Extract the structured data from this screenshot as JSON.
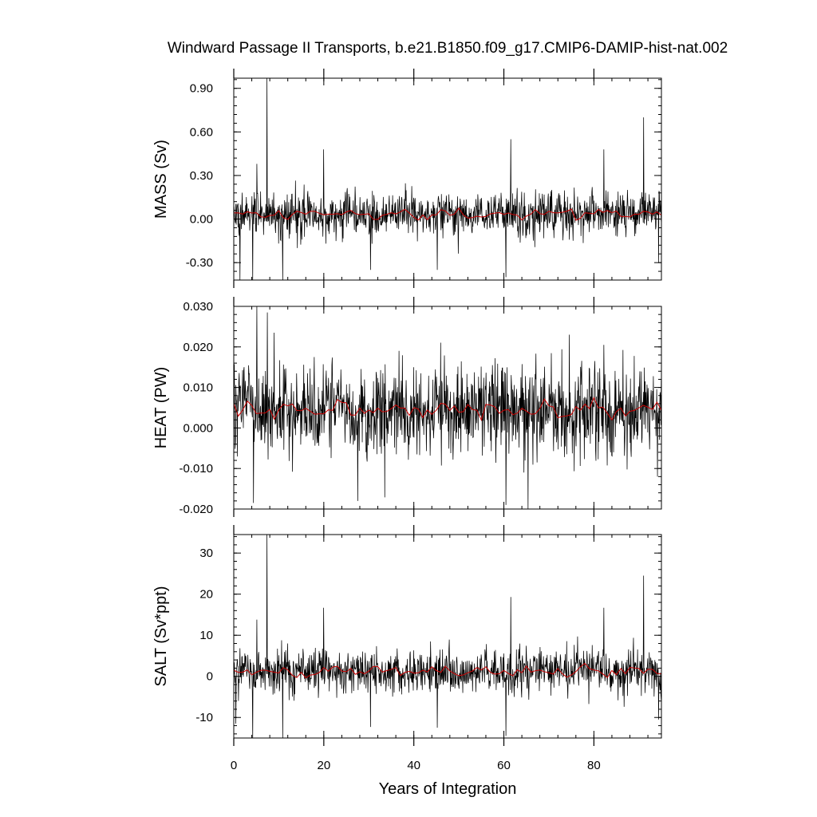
{
  "figure": {
    "title": "Windward Passage II Transports, b.e21.B1850.f09_g17.CMIP6-DAMIP-hist-nat.002",
    "xlabel": "Years of Integration"
  },
  "chart_data": [
    {
      "type": "line",
      "ylabel": "MASS (Sv)",
      "xlim": [
        0,
        95
      ],
      "ylim": [
        -0.42,
        0.97
      ],
      "yticks": [
        -0.3,
        0.0,
        0.3,
        0.6,
        0.9
      ],
      "ytick_labels": [
        "-0.30",
        "0.00",
        "0.30",
        "0.60",
        "0.90"
      ],
      "xticks": [
        0,
        20,
        40,
        60,
        80
      ],
      "xtick_labels": [
        "0",
        "20",
        "40",
        "60",
        "80"
      ],
      "series": [
        {
          "color": "#000000",
          "kind": "monthly",
          "mean": 0.035,
          "std": 0.075,
          "spikes": [
            [
              1.3,
              -0.42
            ],
            [
              4.2,
              -0.42
            ],
            [
              5.1,
              0.38
            ],
            [
              7.3,
              0.97
            ],
            [
              10.8,
              -0.42
            ],
            [
              19.9,
              0.48
            ],
            [
              30.3,
              -0.35
            ],
            [
              45.2,
              -0.35
            ],
            [
              60.4,
              -0.4
            ],
            [
              61.5,
              0.55
            ],
            [
              82.2,
              0.48
            ],
            [
              91.0,
              0.7
            ],
            [
              94.3,
              -0.3
            ]
          ]
        },
        {
          "color": "#cc0000",
          "kind": "annual_mean",
          "mean": 0.035,
          "std": 0.025
        }
      ]
    },
    {
      "type": "line",
      "ylabel": "HEAT (PW)",
      "xlim": [
        0,
        95
      ],
      "ylim": [
        -0.02,
        0.03
      ],
      "yticks": [
        -0.02,
        -0.01,
        0.0,
        0.01,
        0.02,
        0.03
      ],
      "ytick_labels": [
        "-0.020",
        "-0.010",
        "0.000",
        "0.010",
        "0.020",
        "0.030"
      ],
      "xticks": [
        0,
        20,
        40,
        60,
        80
      ],
      "xtick_labels": [
        "0",
        "20",
        "40",
        "60",
        "80"
      ],
      "series": [
        {
          "color": "#000000",
          "kind": "monthly",
          "mean": 0.0045,
          "std": 0.0055,
          "spikes": [
            [
              4.3,
              -0.0185
            ],
            [
              5.1,
              0.03
            ],
            [
              7.4,
              0.0285
            ],
            [
              8.9,
              0.0235
            ],
            [
              27.5,
              -0.018
            ],
            [
              60.4,
              -0.019
            ],
            [
              65.3,
              -0.02
            ],
            [
              74.5,
              0.023
            ],
            [
              82.2,
              0.0205
            ],
            [
              94.1,
              -0.012
            ]
          ]
        },
        {
          "color": "#cc0000",
          "kind": "annual_mean",
          "mean": 0.0045,
          "std": 0.0016
        }
      ]
    },
    {
      "type": "line",
      "ylabel": "SALT (Sv*ppt)",
      "xlim": [
        0,
        95
      ],
      "ylim": [
        -15,
        34.5
      ],
      "yticks": [
        -10,
        0,
        10,
        20,
        30
      ],
      "ytick_labels": [
        "-10",
        "0",
        "10",
        "20",
        "30"
      ],
      "xticks": [
        0,
        20,
        40,
        60,
        80
      ],
      "xtick_labels": [
        "0",
        "20",
        "40",
        "60",
        "80"
      ],
      "series": [
        {
          "color": "#000000",
          "kind": "monthly",
          "mean": 1.2,
          "std": 2.6,
          "spikes": [
            [
              0.4,
              -11.5
            ],
            [
              4.2,
              -15
            ],
            [
              5.1,
              13.8
            ],
            [
              7.3,
              34.5
            ],
            [
              10.8,
              -15
            ],
            [
              19.9,
              16.7
            ],
            [
              30.3,
              -12.3
            ],
            [
              45.2,
              -12.5
            ],
            [
              60.4,
              -14.5
            ],
            [
              61.5,
              19.3
            ],
            [
              82.2,
              16.7
            ],
            [
              91.0,
              24.5
            ],
            [
              94.3,
              -10.5
            ]
          ]
        },
        {
          "color": "#cc0000",
          "kind": "annual_mean",
          "mean": 1.2,
          "std": 0.9
        }
      ]
    }
  ]
}
